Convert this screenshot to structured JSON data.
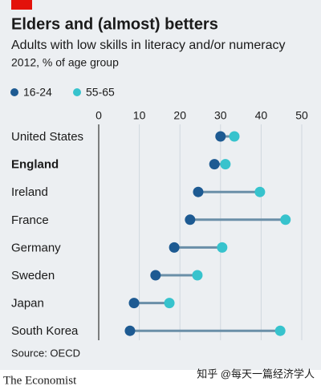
{
  "chart_data": {
    "type": "dot",
    "title": "Elders and (almost) betters",
    "subtitle": "Adults with low skills in literacy and/or numeracy",
    "unit_note": "2012, % of age group",
    "categories": [
      "United States",
      "England",
      "Ireland",
      "France",
      "Germany",
      "Sweden",
      "Japan",
      "South Korea"
    ],
    "highlight_index": 1,
    "series": [
      {
        "name": "16-24",
        "color": "#1d5a92",
        "values": [
          30,
          28.5,
          24.5,
          22.5,
          18.6,
          14,
          8.7,
          7.7
        ]
      },
      {
        "name": "55-65",
        "color": "#37c3cd",
        "values": [
          33.4,
          31.2,
          39.7,
          46,
          30.4,
          24.3,
          17.4,
          44.7
        ]
      }
    ],
    "xlim": [
      0,
      50
    ],
    "xticks": [
      0,
      10,
      20,
      30,
      40,
      50
    ],
    "grid": true,
    "connector_color": "#6a8fa8",
    "source": "Source: OECD",
    "brand": "The Economist",
    "watermark": "知乎 @每天一篇经济学人"
  }
}
